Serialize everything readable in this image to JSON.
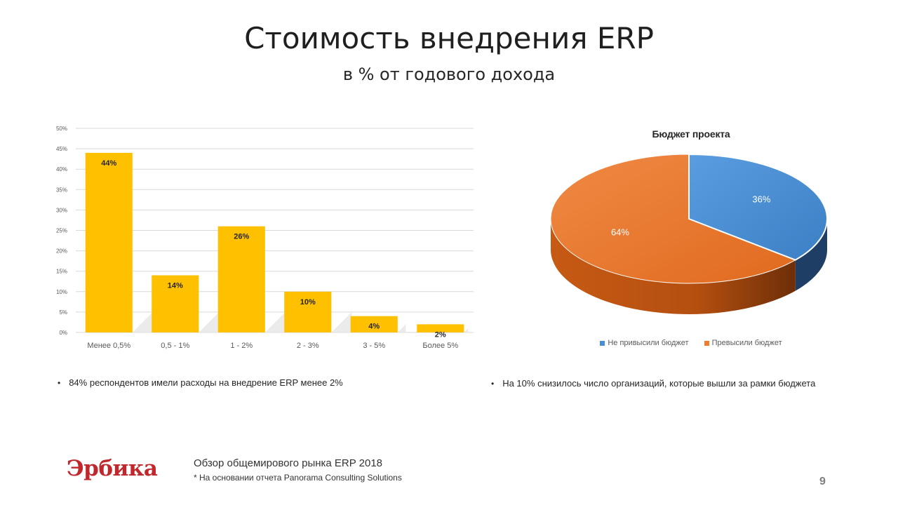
{
  "slide": {
    "title": "Стоимость внедрения ERP",
    "subtitle": "в % от годового дохода",
    "page_number": "9"
  },
  "notes": {
    "left": "84% респондентов  имели расходы на внедрение ERP менее 2%",
    "right": "На 10% снизилось число организаций, которые  вышли за рамки бюджета",
    "bullet": "•"
  },
  "footer": {
    "logo_text": "Эрбика",
    "source_title": "Обзор общемирового рынка ERP 2018",
    "source_note": "* На основании отчета Panorama Consulting Solutions"
  },
  "colors": {
    "bar": "#ffc000",
    "pie_within": "#4a8fd4",
    "pie_over": "#ed7d31",
    "grid": "#d9d9d9"
  },
  "chart_data": [
    {
      "type": "bar",
      "categories": [
        "Менее 0,5%",
        "0,5 - 1%",
        "1 - 2%",
        "2 - 3%",
        "3 - 5%",
        "Более 5%"
      ],
      "values": [
        44,
        14,
        26,
        10,
        4,
        2
      ],
      "data_labels": [
        "44%",
        "14%",
        "26%",
        "10%",
        "4%",
        "2%"
      ],
      "yticks": [
        "0%",
        "5%",
        "10%",
        "15%",
        "20%",
        "25%",
        "30%",
        "35%",
        "40%",
        "45%",
        "50%"
      ],
      "ylim": [
        0,
        50
      ],
      "grid": true,
      "title": "",
      "xlabel": "",
      "ylabel": ""
    },
    {
      "type": "pie",
      "title": "Бюджет проекта",
      "labels": [
        "Не привысили бюджет",
        "Превысили бюджет"
      ],
      "values": [
        36,
        64
      ],
      "data_labels": [
        "36%",
        "64%"
      ],
      "legend_position": "bottom"
    }
  ]
}
